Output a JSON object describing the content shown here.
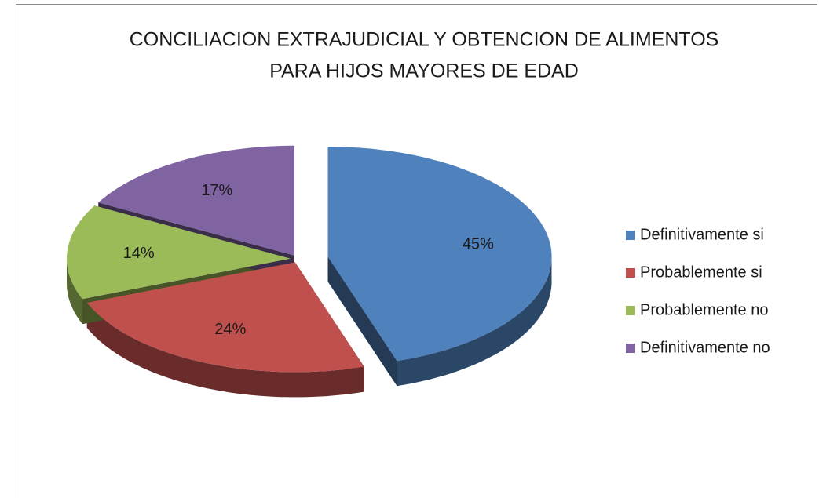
{
  "chart_data": {
    "type": "pie",
    "title": [
      "CONCILIACION EXTRAJUDICIAL Y OBTENCION DE ALIMENTOS",
      "PARA HIJOS MAYORES DE EDAD"
    ],
    "categories": [
      "Definitivamente si",
      "Probablemente si",
      "Probablemente  no",
      "Definitivamente no"
    ],
    "values": [
      45,
      24,
      14,
      17
    ],
    "value_labels": [
      "45%",
      "24%",
      "14%",
      "17%"
    ],
    "colors": [
      "#4f81bd",
      "#c0504d",
      "#9bbb59",
      "#8064a2"
    ],
    "legend": "right"
  }
}
